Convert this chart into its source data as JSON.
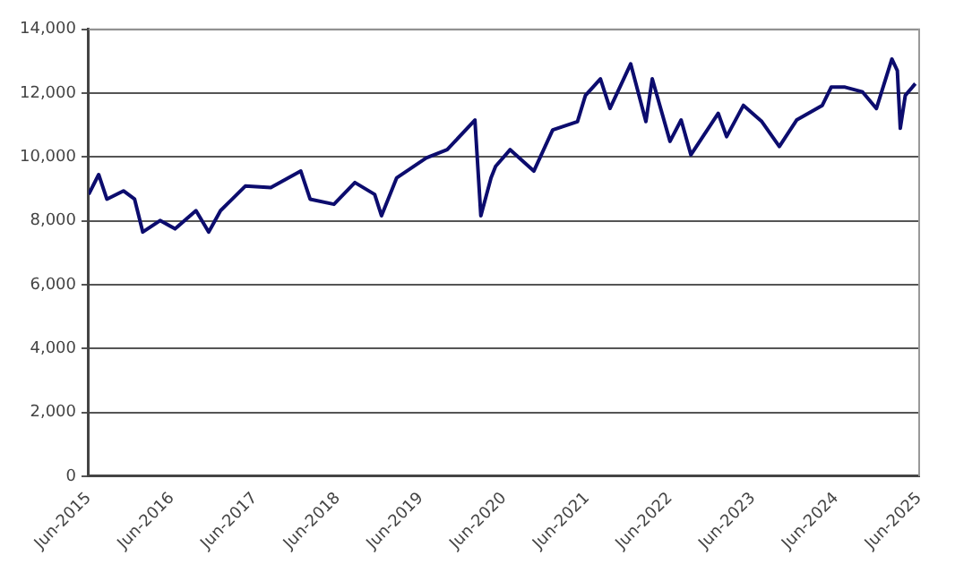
{
  "chart_data": {
    "type": "line",
    "x": [
      "2015-06-01",
      "2015-07-15",
      "2015-08-20",
      "2015-11-01",
      "2015-12-20",
      "2016-01-25",
      "2016-04-10",
      "2016-06-15",
      "2016-09-15",
      "2016-11-10",
      "2017-01-01",
      "2017-04-20",
      "2017-08-10",
      "2017-12-20",
      "2018-01-30",
      "2018-05-15",
      "2018-08-15",
      "2018-11-10",
      "2018-12-10",
      "2019-02-15",
      "2019-06-25",
      "2019-09-25",
      "2020-01-25",
      "2020-02-20",
      "2020-04-05",
      "2020-04-25",
      "2020-06-28",
      "2020-10-10",
      "2021-01-01",
      "2021-04-20",
      "2021-05-25",
      "2021-07-30",
      "2021-09-10",
      "2021-12-10",
      "2022-02-15",
      "2022-03-15",
      "2022-06-01",
      "2022-07-20",
      "2022-09-01",
      "2022-12-30",
      "2023-02-05",
      "2023-04-20",
      "2023-07-10",
      "2023-09-25",
      "2023-12-10",
      "2024-04-01",
      "2024-05-10",
      "2024-07-10",
      "2024-09-25",
      "2024-11-25",
      "2025-02-01",
      "2025-02-25",
      "2025-03-10",
      "2025-04-01",
      "2025-05-15"
    ],
    "series": [
      {
        "color": "#0c0c6e",
        "values": [
          8830,
          9450,
          8680,
          8940,
          8680,
          7650,
          8010,
          7750,
          8320,
          7650,
          8320,
          9090,
          9040,
          9560,
          8680,
          8520,
          9200,
          8830,
          8160,
          9350,
          9970,
          10230,
          11160,
          8160,
          9350,
          9710,
          10230,
          9560,
          10850,
          11110,
          11930,
          12450,
          11520,
          12920,
          11110,
          12450,
          10490,
          11160,
          10070,
          11370,
          10640,
          11620,
          11110,
          10330,
          11160,
          11620,
          12190,
          12190,
          12040,
          11520,
          13070,
          12710,
          10900,
          11930,
          12300
        ]
      }
    ],
    "xlim": [
      "2015-06",
      "2025-06"
    ],
    "xticks": [
      {
        "value": "2015-06",
        "label": "Jun-2015"
      },
      {
        "value": "2016-06",
        "label": "Jun-2016"
      },
      {
        "value": "2017-06",
        "label": "Jun-2017"
      },
      {
        "value": "2018-06",
        "label": "Jun-2018"
      },
      {
        "value": "2019-06",
        "label": "Jun-2019"
      },
      {
        "value": "2020-06",
        "label": "Jun-2020"
      },
      {
        "value": "2021-06",
        "label": "Jun-2021"
      },
      {
        "value": "2022-06",
        "label": "Jun-2022"
      },
      {
        "value": "2023-06",
        "label": "Jun-2023"
      },
      {
        "value": "2024-06",
        "label": "Jun-2024"
      },
      {
        "value": "2025-06",
        "label": "Jun-2025"
      }
    ],
    "ylim": [
      0,
      14000
    ],
    "yticks": [
      {
        "value": 0,
        "label": "0"
      },
      {
        "value": 2000,
        "label": "2,000"
      },
      {
        "value": 4000,
        "label": "4,000"
      },
      {
        "value": 6000,
        "label": "6,000"
      },
      {
        "value": 8000,
        "label": "8,000"
      },
      {
        "value": 10000,
        "label": "10,000"
      },
      {
        "value": 12000,
        "label": "12,000"
      },
      {
        "value": 14000,
        "label": "14,000"
      }
    ],
    "grid": "y",
    "legend": false,
    "marker": "none",
    "line_style": "solid"
  }
}
